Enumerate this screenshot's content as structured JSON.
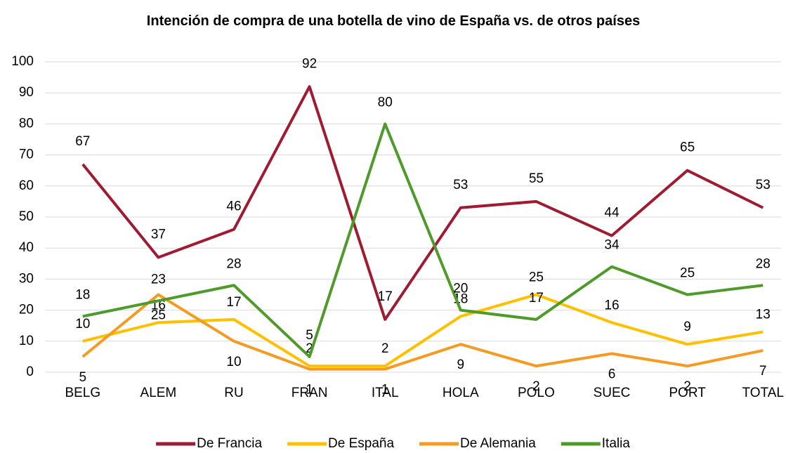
{
  "chart_data": {
    "type": "line",
    "title": "Intención de compra de una botella de vino de España vs. de otros países",
    "categories": [
      "BELG",
      "ALEM",
      "RU",
      "FRAN",
      "ITAL",
      "HOLA",
      "POLO",
      "SUEC",
      "PORT",
      "TOTAL"
    ],
    "series": [
      {
        "name": "De Francia",
        "color": "#9e1b32",
        "values": [
          67,
          37,
          46,
          92,
          17,
          53,
          55,
          44,
          65,
          53
        ]
      },
      {
        "name": "De España",
        "color": "#ffc000",
        "values": [
          10,
          16,
          17,
          2,
          2,
          18,
          25,
          16,
          9,
          13
        ]
      },
      {
        "name": "De Alemania",
        "color": "#f59a23",
        "values": [
          5,
          25,
          10,
          1,
          1,
          9,
          2,
          6,
          2,
          7
        ]
      },
      {
        "name": "Italia",
        "color": "#4e9a2a",
        "values": [
          18,
          23,
          28,
          5,
          80,
          20,
          17,
          34,
          25,
          28
        ]
      }
    ],
    "ylim": [
      0,
      100
    ],
    "yticks": [
      0,
      10,
      20,
      30,
      40,
      50,
      60,
      70,
      80,
      90,
      100
    ],
    "grid": true,
    "legend": "bottom"
  }
}
